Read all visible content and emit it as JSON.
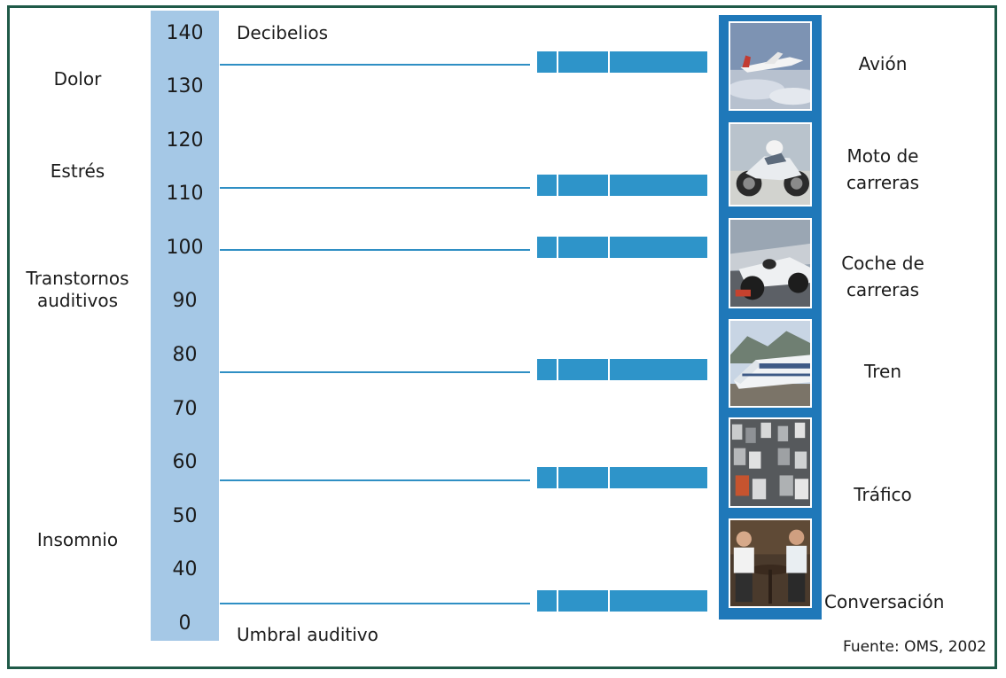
{
  "header": {
    "unit_label": "Decibelios",
    "threshold_label": "Umbral auditivo"
  },
  "scale": {
    "ticks": [
      "140",
      "130",
      "120",
      "110",
      "100",
      "90",
      "80",
      "70",
      "60",
      "50",
      "40",
      "0"
    ]
  },
  "effects": [
    {
      "label": "Dolor"
    },
    {
      "label": "Estrés"
    },
    {
      "label_line1": "Transtornos",
      "label_line2": "auditivos"
    },
    {
      "label": "Insomnio"
    }
  ],
  "sources": [
    {
      "label_line1": "Avión",
      "db": 135
    },
    {
      "label_line1": "Moto de",
      "label_line2": "carreras",
      "db": 112
    },
    {
      "label_line1": "Coche de",
      "label_line2": "carreras",
      "db": 100
    },
    {
      "label_line1": "Tren",
      "db": 77
    },
    {
      "label_line1": "Tráfico",
      "db": 57
    },
    {
      "label_line1": "Conversación",
      "db": 34
    }
  ],
  "footer": {
    "source": "Fuente: OMS, 2002"
  },
  "colors": {
    "frame": "#1f5a48",
    "scale_band": "#a5c8e6",
    "bar": "#2e94c9",
    "photo_column": "#1f78b9",
    "line": "#2f8fc4"
  }
}
